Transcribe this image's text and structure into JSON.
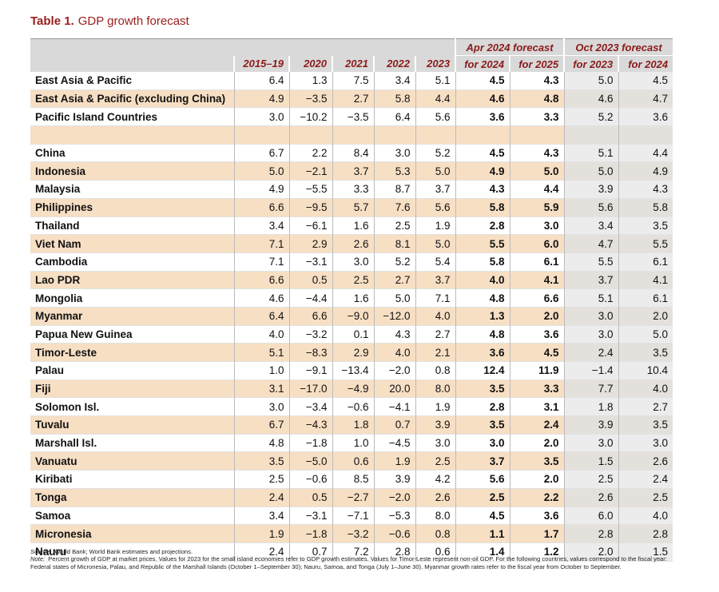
{
  "title": {
    "number": "Table 1.",
    "text": "GDP growth forecast"
  },
  "table": {
    "column_groups": [
      {
        "label": "Apr 2024 forecast",
        "span": 2
      },
      {
        "label": "Oct 2023 forecast",
        "span": 2
      }
    ],
    "columns": [
      "2015–19",
      "2020",
      "2021",
      "2022",
      "2023",
      "for 2024",
      "for 2025",
      "for 2023",
      "for 2024"
    ],
    "groups": [
      {
        "rows": [
          {
            "label": "East Asia & Pacific",
            "values": [
              "6.4",
              "1.3",
              "7.5",
              "3.4",
              "5.1",
              "4.5",
              "4.3",
              "5.0",
              "4.5"
            ]
          },
          {
            "label": "East Asia & Pacific (excluding China)",
            "values": [
              "4.9",
              "−3.5",
              "2.7",
              "5.8",
              "4.4",
              "4.6",
              "4.8",
              "4.6",
              "4.7"
            ]
          },
          {
            "label": "Pacific Island Countries",
            "values": [
              "3.0",
              "−10.2",
              "−3.5",
              "6.4",
              "5.6",
              "3.6",
              "3.3",
              "5.2",
              "3.6"
            ]
          }
        ]
      },
      {
        "rows": [
          {
            "label": "China",
            "values": [
              "6.7",
              "2.2",
              "8.4",
              "3.0",
              "5.2",
              "4.5",
              "4.3",
              "5.1",
              "4.4"
            ]
          },
          {
            "label": "Indonesia",
            "values": [
              "5.0",
              "−2.1",
              "3.7",
              "5.3",
              "5.0",
              "4.9",
              "5.0",
              "5.0",
              "4.9"
            ]
          },
          {
            "label": "Malaysia",
            "values": [
              "4.9",
              "−5.5",
              "3.3",
              "8.7",
              "3.7",
              "4.3",
              "4.4",
              "3.9",
              "4.3"
            ]
          },
          {
            "label": "Philippines",
            "values": [
              "6.6",
              "−9.5",
              "5.7",
              "7.6",
              "5.6",
              "5.8",
              "5.9",
              "5.6",
              "5.8"
            ]
          },
          {
            "label": "Thailand",
            "values": [
              "3.4",
              "−6.1",
              "1.6",
              "2.5",
              "1.9",
              "2.8",
              "3.0",
              "3.4",
              "3.5"
            ]
          },
          {
            "label": "Viet Nam",
            "values": [
              "7.1",
              "2.9",
              "2.6",
              "8.1",
              "5.0",
              "5.5",
              "6.0",
              "4.7",
              "5.5"
            ]
          },
          {
            "label": "Cambodia",
            "values": [
              "7.1",
              "−3.1",
              "3.0",
              "5.2",
              "5.4",
              "5.8",
              "6.1",
              "5.5",
              "6.1"
            ]
          },
          {
            "label": "Lao PDR",
            "values": [
              "6.6",
              "0.5",
              "2.5",
              "2.7",
              "3.7",
              "4.0",
              "4.1",
              "3.7",
              "4.1"
            ]
          },
          {
            "label": "Mongolia",
            "values": [
              "4.6",
              "−4.4",
              "1.6",
              "5.0",
              "7.1",
              "4.8",
              "6.6",
              "5.1",
              "6.1"
            ]
          },
          {
            "label": "Myanmar",
            "values": [
              "6.4",
              "6.6",
              "−9.0",
              "−12.0",
              "4.0",
              "1.3",
              "2.0",
              "3.0",
              "2.0"
            ]
          },
          {
            "label": "Papua New Guinea",
            "values": [
              "4.0",
              "−3.2",
              "0.1",
              "4.3",
              "2.7",
              "4.8",
              "3.6",
              "3.0",
              "5.0"
            ]
          },
          {
            "label": "Timor-Leste",
            "values": [
              "5.1",
              "−8.3",
              "2.9",
              "4.0",
              "2.1",
              "3.6",
              "4.5",
              "2.4",
              "3.5"
            ]
          },
          {
            "label": "Palau",
            "values": [
              "1.0",
              "−9.1",
              "−13.4",
              "−2.0",
              "0.8",
              "12.4",
              "11.9",
              "−1.4",
              "10.4"
            ]
          },
          {
            "label": "Fiji",
            "values": [
              "3.1",
              "−17.0",
              "−4.9",
              "20.0",
              "8.0",
              "3.5",
              "3.3",
              "7.7",
              "4.0"
            ]
          },
          {
            "label": "Solomon Isl.",
            "values": [
              "3.0",
              "−3.4",
              "−0.6",
              "−4.1",
              "1.9",
              "2.8",
              "3.1",
              "1.8",
              "2.7"
            ]
          },
          {
            "label": "Tuvalu",
            "values": [
              "6.7",
              "−4.3",
              "1.8",
              "0.7",
              "3.9",
              "3.5",
              "2.4",
              "3.9",
              "3.5"
            ]
          },
          {
            "label": "Marshall Isl.",
            "values": [
              "4.8",
              "−1.8",
              "1.0",
              "−4.5",
              "3.0",
              "3.0",
              "2.0",
              "3.0",
              "3.0"
            ]
          },
          {
            "label": "Vanuatu",
            "values": [
              "3.5",
              "−5.0",
              "0.6",
              "1.9",
              "2.5",
              "3.7",
              "3.5",
              "1.5",
              "2.6"
            ]
          },
          {
            "label": "Kiribati",
            "values": [
              "2.5",
              "−0.6",
              "8.5",
              "3.9",
              "4.2",
              "5.6",
              "2.0",
              "2.5",
              "2.4"
            ]
          },
          {
            "label": "Tonga",
            "values": [
              "2.4",
              "0.5",
              "−2.7",
              "−2.0",
              "2.6",
              "2.5",
              "2.2",
              "2.6",
              "2.5"
            ]
          },
          {
            "label": "Samoa",
            "values": [
              "3.4",
              "−3.1",
              "−7.1",
              "−5.3",
              "8.0",
              "4.5",
              "3.6",
              "6.0",
              "4.0"
            ]
          },
          {
            "label": "Micronesia",
            "values": [
              "1.9",
              "−1.8",
              "−3.2",
              "−0.6",
              "0.8",
              "1.1",
              "1.7",
              "2.8",
              "2.8"
            ]
          },
          {
            "label": "Nauru",
            "values": [
              "2.4",
              "0.7",
              "7.2",
              "2.8",
              "0.6",
              "1.4",
              "1.2",
              "2.0",
              "1.5"
            ]
          }
        ]
      }
    ]
  },
  "notes": {
    "source": {
      "label": "Source:",
      "text": "World Bank; World Bank estimates and projections."
    },
    "note": {
      "label": "Note:",
      "text": "Percent growth of GDP at market prices. Values for 2023 for the small island economies refer to GDP growth estimates. Values for Timor-Leste represent non-oil GDP. For the following countries, values correspond to the fiscal year: Federal states of Micronesia, Palau, and Republic of the Marshall Islands (October 1–September 30); Nauru, Samoa, and Tonga (July 1–June 30). Myanmar growth rates refer to the fiscal year from October to September."
    }
  }
}
